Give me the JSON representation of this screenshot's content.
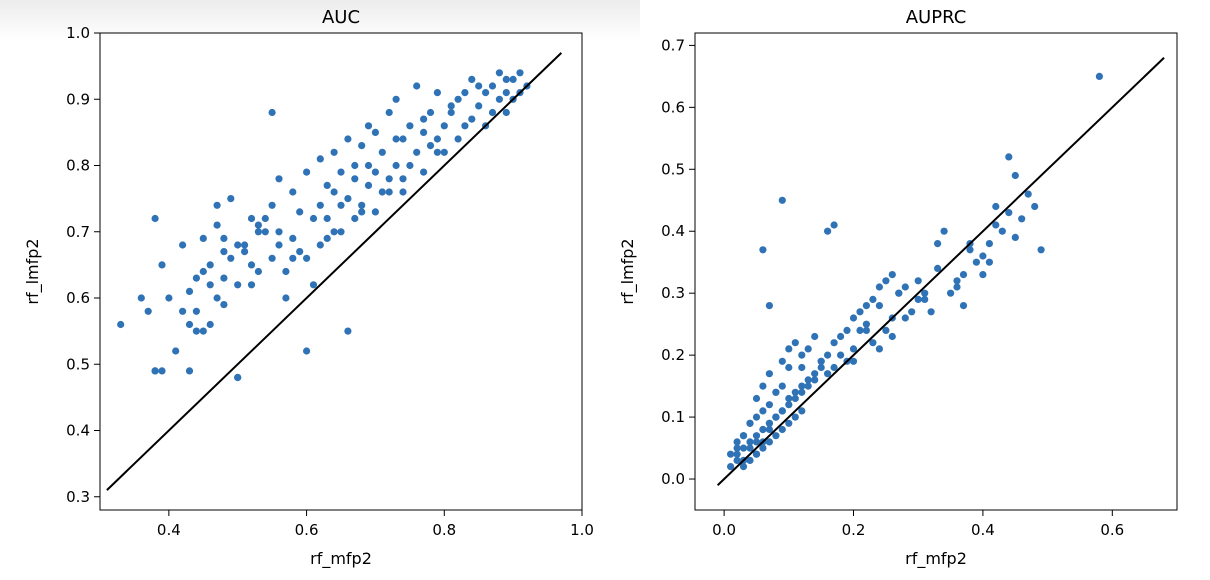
{
  "chart_data": [
    {
      "type": "scatter",
      "title": "AUC",
      "xlabel": "rf_mfp2",
      "ylabel": "rf_lmfp2",
      "xlim": [
        0.3,
        1.0
      ],
      "ylim": [
        0.28,
        1.0
      ],
      "xticks": [
        0.4,
        0.6,
        0.8,
        1.0
      ],
      "yticks": [
        0.3,
        0.4,
        0.5,
        0.6,
        0.7,
        0.8,
        0.9,
        1.0
      ],
      "xtick_labels": [
        "0.4",
        "0.6",
        "0.8",
        "1.0"
      ],
      "ytick_labels": [
        "0.3",
        "0.4",
        "0.5",
        "0.6",
        "0.7",
        "0.8",
        "0.9",
        "1.0"
      ],
      "reference_line": {
        "x": [
          0.31,
          0.97
        ],
        "y": [
          0.31,
          0.97
        ]
      },
      "grid": false,
      "color": "#2f73b6",
      "points": {
        "x": [
          0.33,
          0.36,
          0.37,
          0.38,
          0.38,
          0.39,
          0.39,
          0.4,
          0.41,
          0.42,
          0.42,
          0.43,
          0.43,
          0.44,
          0.44,
          0.45,
          0.45,
          0.46,
          0.46,
          0.47,
          0.47,
          0.48,
          0.48,
          0.49,
          0.49,
          0.5,
          0.5,
          0.51,
          0.52,
          0.52,
          0.53,
          0.53,
          0.54,
          0.55,
          0.55,
          0.56,
          0.56,
          0.57,
          0.58,
          0.58,
          0.59,
          0.6,
          0.6,
          0.61,
          0.62,
          0.62,
          0.63,
          0.63,
          0.64,
          0.64,
          0.65,
          0.65,
          0.66,
          0.66,
          0.67,
          0.67,
          0.68,
          0.68,
          0.69,
          0.69,
          0.7,
          0.7,
          0.71,
          0.72,
          0.72,
          0.73,
          0.73,
          0.74,
          0.74,
          0.75,
          0.76,
          0.76,
          0.77,
          0.77,
          0.78,
          0.79,
          0.79,
          0.8,
          0.8,
          0.81,
          0.82,
          0.82,
          0.83,
          0.84,
          0.84,
          0.85,
          0.86,
          0.86,
          0.87,
          0.88,
          0.88,
          0.89,
          0.89,
          0.9,
          0.9,
          0.91,
          0.92,
          0.55,
          0.38,
          0.66,
          0.6,
          0.5,
          0.43,
          0.45,
          0.48,
          0.47,
          0.51,
          0.53,
          0.57,
          0.59,
          0.61,
          0.63,
          0.65,
          0.67,
          0.69,
          0.71,
          0.73,
          0.75,
          0.77,
          0.79,
          0.81,
          0.83,
          0.85,
          0.87,
          0.89,
          0.91,
          0.64,
          0.68,
          0.72,
          0.62,
          0.7,
          0.74,
          0.78,
          0.58,
          0.56,
          0.54,
          0.52,
          0.5,
          0.48,
          0.46,
          0.44
        ],
        "y": [
          0.56,
          0.6,
          0.58,
          0.72,
          0.49,
          0.65,
          0.49,
          0.6,
          0.52,
          0.58,
          0.68,
          0.56,
          0.49,
          0.55,
          0.63,
          0.55,
          0.69,
          0.56,
          0.65,
          0.6,
          0.71,
          0.59,
          0.69,
          0.66,
          0.75,
          0.48,
          0.62,
          0.67,
          0.72,
          0.62,
          0.71,
          0.64,
          0.72,
          0.74,
          0.66,
          0.7,
          0.78,
          0.64,
          0.76,
          0.69,
          0.73,
          0.66,
          0.79,
          0.72,
          0.74,
          0.81,
          0.69,
          0.77,
          0.76,
          0.82,
          0.7,
          0.79,
          0.75,
          0.84,
          0.72,
          0.8,
          0.74,
          0.83,
          0.77,
          0.86,
          0.79,
          0.73,
          0.82,
          0.78,
          0.88,
          0.8,
          0.9,
          0.84,
          0.76,
          0.86,
          0.82,
          0.92,
          0.85,
          0.79,
          0.88,
          0.84,
          0.91,
          0.86,
          0.82,
          0.88,
          0.9,
          0.84,
          0.91,
          0.87,
          0.93,
          0.89,
          0.91,
          0.86,
          0.92,
          0.9,
          0.94,
          0.91,
          0.88,
          0.93,
          0.9,
          0.94,
          0.92,
          0.88,
          0.49,
          0.55,
          0.52,
          0.48,
          0.61,
          0.64,
          0.67,
          0.74,
          0.68,
          0.7,
          0.6,
          0.67,
          0.62,
          0.72,
          0.74,
          0.78,
          0.8,
          0.76,
          0.84,
          0.8,
          0.87,
          0.82,
          0.89,
          0.86,
          0.92,
          0.88,
          0.93,
          0.91,
          0.7,
          0.73,
          0.76,
          0.68,
          0.85,
          0.78,
          0.83,
          0.66,
          0.68,
          0.7,
          0.65,
          0.68,
          0.63,
          0.62,
          0.58
        ]
      }
    },
    {
      "type": "scatter",
      "title": "AUPRC",
      "xlabel": "rf_mfp2",
      "ylabel": "rf_lmfp2",
      "xlim": [
        -0.045,
        0.7
      ],
      "ylim": [
        -0.05,
        0.72
      ],
      "xticks": [
        0.0,
        0.2,
        0.4,
        0.6
      ],
      "yticks": [
        0.0,
        0.1,
        0.2,
        0.3,
        0.4,
        0.5,
        0.6,
        0.7
      ],
      "xtick_labels": [
        "0.0",
        "0.2",
        "0.4",
        "0.6"
      ],
      "ytick_labels": [
        "0.0",
        "0.1",
        "0.2",
        "0.3",
        "0.4",
        "0.5",
        "0.6",
        "0.7"
      ],
      "reference_line": {
        "x": [
          -0.01,
          0.68
        ],
        "y": [
          -0.01,
          0.68
        ]
      },
      "grid": false,
      "color": "#2f73b6",
      "points": {
        "x": [
          0.58,
          0.09,
          0.06,
          0.07,
          0.16,
          0.17,
          0.49,
          0.44,
          0.45,
          0.4,
          0.38,
          0.36,
          0.42,
          0.47,
          0.41,
          0.34,
          0.37,
          0.31,
          0.33,
          0.29,
          0.3,
          0.27,
          0.26,
          0.24,
          0.25,
          0.22,
          0.23,
          0.21,
          0.2,
          0.19,
          0.18,
          0.17,
          0.16,
          0.15,
          0.14,
          0.13,
          0.12,
          0.12,
          0.11,
          0.1,
          0.1,
          0.09,
          0.09,
          0.08,
          0.08,
          0.07,
          0.07,
          0.06,
          0.06,
          0.05,
          0.05,
          0.04,
          0.04,
          0.03,
          0.03,
          0.02,
          0.02,
          0.02,
          0.01,
          0.01,
          0.03,
          0.04,
          0.05,
          0.06,
          0.07,
          0.08,
          0.09,
          0.1,
          0.11,
          0.12,
          0.13,
          0.14,
          0.15,
          0.16,
          0.17,
          0.18,
          0.19,
          0.2,
          0.21,
          0.22,
          0.23,
          0.24,
          0.25,
          0.26,
          0.27,
          0.28,
          0.3,
          0.32,
          0.35,
          0.37,
          0.39,
          0.41,
          0.43,
          0.44,
          0.46,
          0.48,
          0.05,
          0.06,
          0.07,
          0.08,
          0.09,
          0.1,
          0.11,
          0.12,
          0.13,
          0.14,
          0.15,
          0.03,
          0.04,
          0.05,
          0.06,
          0.07,
          0.08,
          0.09,
          0.1,
          0.11,
          0.12,
          0.02,
          0.03,
          0.04,
          0.05,
          0.06,
          0.07,
          0.08,
          0.2,
          0.22,
          0.24,
          0.26,
          0.28,
          0.31,
          0.33,
          0.36,
          0.38,
          0.4,
          0.42,
          0.45
        ],
        "y": [
          0.65,
          0.45,
          0.37,
          0.28,
          0.4,
          0.41,
          0.37,
          0.52,
          0.49,
          0.33,
          0.38,
          0.31,
          0.44,
          0.46,
          0.35,
          0.4,
          0.28,
          0.3,
          0.38,
          0.27,
          0.32,
          0.3,
          0.26,
          0.28,
          0.24,
          0.25,
          0.22,
          0.24,
          0.21,
          0.19,
          0.2,
          0.18,
          0.17,
          0.18,
          0.16,
          0.15,
          0.14,
          0.2,
          0.13,
          0.12,
          0.18,
          0.11,
          0.15,
          0.1,
          0.14,
          0.09,
          0.12,
          0.08,
          0.11,
          0.07,
          0.1,
          0.06,
          0.09,
          0.05,
          0.07,
          0.04,
          0.06,
          0.03,
          0.02,
          0.04,
          0.03,
          0.05,
          0.06,
          0.08,
          0.09,
          0.1,
          0.11,
          0.13,
          0.14,
          0.15,
          0.16,
          0.17,
          0.19,
          0.2,
          0.22,
          0.23,
          0.24,
          0.26,
          0.27,
          0.28,
          0.29,
          0.31,
          0.32,
          0.33,
          0.3,
          0.26,
          0.29,
          0.27,
          0.3,
          0.33,
          0.35,
          0.38,
          0.4,
          0.43,
          0.42,
          0.44,
          0.13,
          0.15,
          0.17,
          0.14,
          0.19,
          0.21,
          0.22,
          0.18,
          0.21,
          0.23,
          0.19,
          0.02,
          0.03,
          0.04,
          0.05,
          0.06,
          0.07,
          0.08,
          0.09,
          0.1,
          0.11,
          0.05,
          0.07,
          0.09,
          0.04,
          0.06,
          0.08,
          0.1,
          0.19,
          0.24,
          0.21,
          0.23,
          0.31,
          0.29,
          0.34,
          0.32,
          0.37,
          0.36,
          0.41,
          0.39
        ]
      }
    }
  ]
}
